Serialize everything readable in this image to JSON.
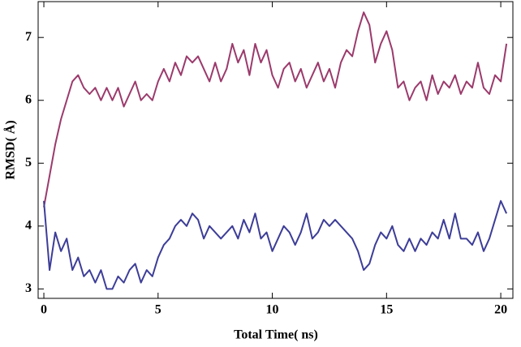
{
  "chart_data": {
    "type": "line",
    "xlabel": "Total Time( ns)",
    "ylabel": "RMSD( Å)",
    "x": [
      0,
      0.25,
      0.5,
      0.75,
      1,
      1.25,
      1.5,
      1.75,
      2,
      2.25,
      2.5,
      2.75,
      3,
      3.25,
      3.5,
      3.75,
      4,
      4.25,
      4.5,
      4.75,
      5,
      5.25,
      5.5,
      5.75,
      6,
      6.25,
      6.5,
      6.75,
      7,
      7.25,
      7.5,
      7.75,
      8,
      8.25,
      8.5,
      8.75,
      9,
      9.25,
      9.5,
      9.75,
      10,
      10.25,
      10.5,
      10.75,
      11,
      11.25,
      11.5,
      11.75,
      12,
      12.25,
      12.5,
      12.75,
      13,
      13.25,
      13.5,
      13.75,
      14,
      14.25,
      14.5,
      14.75,
      15,
      15.25,
      15.5,
      15.75,
      16,
      16.25,
      16.5,
      16.75,
      17,
      17.25,
      17.5,
      17.75,
      18,
      18.25,
      18.5,
      18.75,
      19,
      19.25,
      19.5,
      19.75,
      20,
      20.25
    ],
    "series": [
      {
        "color": "#9b3a6c",
        "values": [
          4.3,
          4.8,
          5.3,
          5.7,
          6.0,
          6.3,
          6.4,
          6.2,
          6.1,
          6.2,
          6.0,
          6.2,
          6.0,
          6.2,
          5.9,
          6.1,
          6.3,
          6.0,
          6.1,
          6.0,
          6.3,
          6.5,
          6.3,
          6.6,
          6.4,
          6.7,
          6.6,
          6.7,
          6.5,
          6.3,
          6.6,
          6.3,
          6.5,
          6.9,
          6.6,
          6.8,
          6.4,
          6.9,
          6.6,
          6.8,
          6.4,
          6.2,
          6.5,
          6.6,
          6.3,
          6.5,
          6.2,
          6.4,
          6.6,
          6.3,
          6.5,
          6.2,
          6.6,
          6.8,
          6.7,
          7.1,
          7.4,
          7.2,
          6.6,
          6.9,
          7.1,
          6.8,
          6.2,
          6.3,
          6.0,
          6.2,
          6.3,
          6.0,
          6.4,
          6.1,
          6.3,
          6.2,
          6.4,
          6.1,
          6.3,
          6.2,
          6.6,
          6.2,
          6.1,
          6.4,
          6.3,
          6.9
        ]
      },
      {
        "color": "#3d3d98",
        "values": [
          4.4,
          3.3,
          3.9,
          3.6,
          3.8,
          3.3,
          3.5,
          3.2,
          3.3,
          3.1,
          3.3,
          3.0,
          3.0,
          3.2,
          3.1,
          3.3,
          3.4,
          3.1,
          3.3,
          3.2,
          3.5,
          3.7,
          3.8,
          4.0,
          4.1,
          4.0,
          4.2,
          4.1,
          3.8,
          4.0,
          3.9,
          3.8,
          3.9,
          4.0,
          3.8,
          4.1,
          3.9,
          4.2,
          3.8,
          3.9,
          3.6,
          3.8,
          4.0,
          3.9,
          3.7,
          3.9,
          4.2,
          3.8,
          3.9,
          4.1,
          4.0,
          4.1,
          4.0,
          3.9,
          3.8,
          3.6,
          3.3,
          3.4,
          3.7,
          3.9,
          3.8,
          4.0,
          3.7,
          3.6,
          3.8,
          3.6,
          3.8,
          3.7,
          3.9,
          3.8,
          4.1,
          3.8,
          4.2,
          3.8,
          3.8,
          3.7,
          3.9,
          3.6,
          3.8,
          4.1,
          4.4,
          4.2
        ]
      }
    ],
    "xlim": [
      -0.25,
      20.53
    ],
    "ylim": [
      2.85,
      7.57
    ],
    "xticks": [
      0,
      5,
      10,
      15,
      20
    ],
    "yticks": [
      3,
      4,
      5,
      6,
      7
    ]
  }
}
